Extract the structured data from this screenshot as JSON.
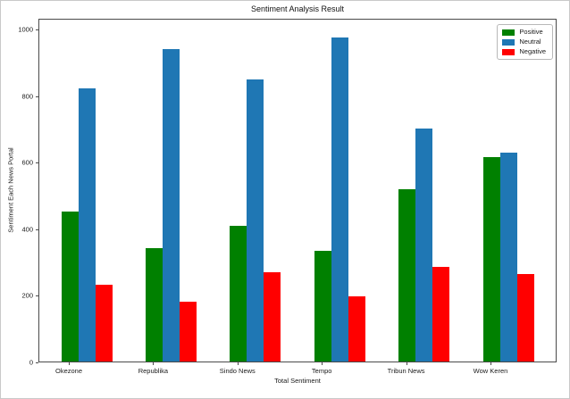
{
  "figure": {
    "title": "Sentiment Analysis Result",
    "xlabel": "Total Sentiment",
    "ylabel": "Sentiment Each News Portal"
  },
  "chart_data": {
    "type": "bar",
    "title": "Sentiment Analysis Result",
    "xlabel": "Total Sentiment",
    "ylabel": "Sentiment Each News Portal",
    "categories": [
      "Okezone",
      "Republika",
      "Sindo News",
      "Tempo",
      "Tribun News",
      "Wow Keren"
    ],
    "series": [
      {
        "name": "Positive",
        "color": "#008000",
        "values": [
          450,
          340,
          408,
          333,
          518,
          615
        ]
      },
      {
        "name": "Neutral",
        "color": "#1f77b4",
        "values": [
          822,
          938,
          848,
          973,
          700,
          627
        ]
      },
      {
        "name": "Negative",
        "color": "#ff0000",
        "values": [
          230,
          180,
          268,
          196,
          284,
          262
        ]
      }
    ],
    "yticks": [
      0,
      200,
      400,
      600,
      800,
      1000
    ],
    "ylim": [
      0,
      1033
    ],
    "grid": false,
    "legend_position": "upper right"
  }
}
